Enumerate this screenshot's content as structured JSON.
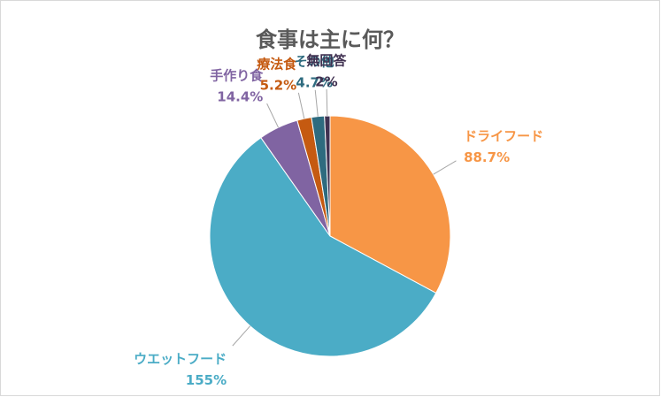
{
  "chart_data": {
    "type": "pie",
    "title": "食事は主に何？",
    "categories": [
      "ドライフード",
      "ウエットフード",
      "手作り食",
      "療法食",
      "その他",
      "無回答"
    ],
    "values": [
      88.7,
      155,
      14.4,
      5.2,
      4.7,
      2
    ],
    "value_labels": [
      "88.7%",
      "155%",
      "14.4%",
      "5.2%",
      "4.7%",
      "2%"
    ],
    "colors": [
      "#f79646",
      "#4bacc6",
      "#8064a2",
      "#c55a11",
      "#2e6b7f",
      "#403151"
    ]
  }
}
